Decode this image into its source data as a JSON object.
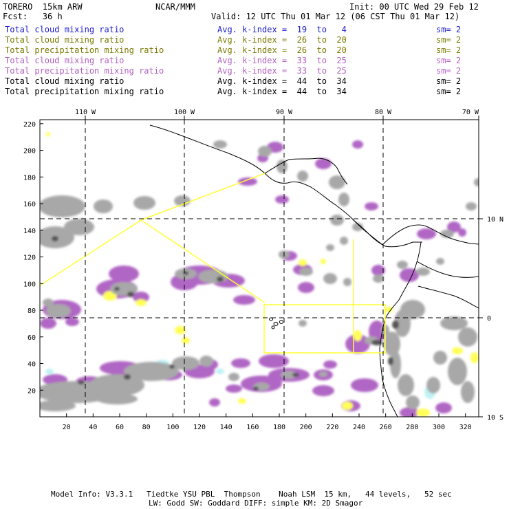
{
  "header": {
    "model_name": "TORERO  15km ARW",
    "org": "NCAR/MMM",
    "init": "Init: 00 UTC Wed 29 Feb 12",
    "fcst": "Fcst:   36 h",
    "valid": "Valid: 12 UTC Thu 01 Mar 12 (06 CST Thu 01 Mar 12)"
  },
  "legend": [
    {
      "field": "Total cloud mixing ratio",
      "index": "Avg. k-index =  19  to   4",
      "sm": "sm= 2",
      "color": "#1a1acc"
    },
    {
      "field": "Total cloud mixing ratio",
      "index": "Avg. k-index =  26  to  20",
      "sm": "sm= 2",
      "color": "#7a7a00"
    },
    {
      "field": "Total precipitation mixing ratio",
      "index": "Avg. k-index =  26  to  20",
      "sm": "sm= 2",
      "color": "#7a7a00"
    },
    {
      "field": "Total cloud mixing ratio",
      "index": "Avg. k-index =  33  to  25",
      "sm": "sm= 2",
      "color": "#b060c0"
    },
    {
      "field": "Total precipitation mixing ratio",
      "index": "Avg. k-index =  33  to  25",
      "sm": "sm= 2",
      "color": "#b060c0"
    },
    {
      "field": "Total cloud mixing ratio",
      "index": "Avg. k-index =  44  to  34",
      "sm": "sm= 2",
      "color": "#000000"
    },
    {
      "field": "Total precipitation mixing ratio",
      "index": "Avg. k-index =  44  to  34",
      "sm": "sm= 2",
      "color": "#000000"
    }
  ],
  "axes": {
    "lon_labels": [
      "110 W",
      "100 W",
      "90 W",
      "80 W",
      "70 W"
    ],
    "lat_labels": [
      "10 N",
      "0",
      "10 S"
    ],
    "y_ticks": [
      "220",
      "200",
      "180",
      "160",
      "140",
      "120",
      "100",
      "80",
      "60",
      "40",
      "20"
    ],
    "x_ticks": [
      "20",
      "40",
      "60",
      "80",
      "100",
      "120",
      "140",
      "160",
      "180",
      "200",
      "220",
      "240",
      "260",
      "280",
      "300",
      "320"
    ]
  },
  "footer": {
    "line1": "Model Info: V3.3.1   Tiedtke YSU PBL  Thompson    Noah LSM  15 km,   44 levels,   52 sec",
    "line2": "LW: Godd SW: Goddard DIFF: simple KM: 2D Smagor"
  },
  "colors": {
    "gray_cloud": "#a8a8a8",
    "dark_cloud": "#555555",
    "purple": "#b066c4",
    "yellow": "#ffff55",
    "cyan": "#bff2f5",
    "box_line": "#ffff33"
  }
}
